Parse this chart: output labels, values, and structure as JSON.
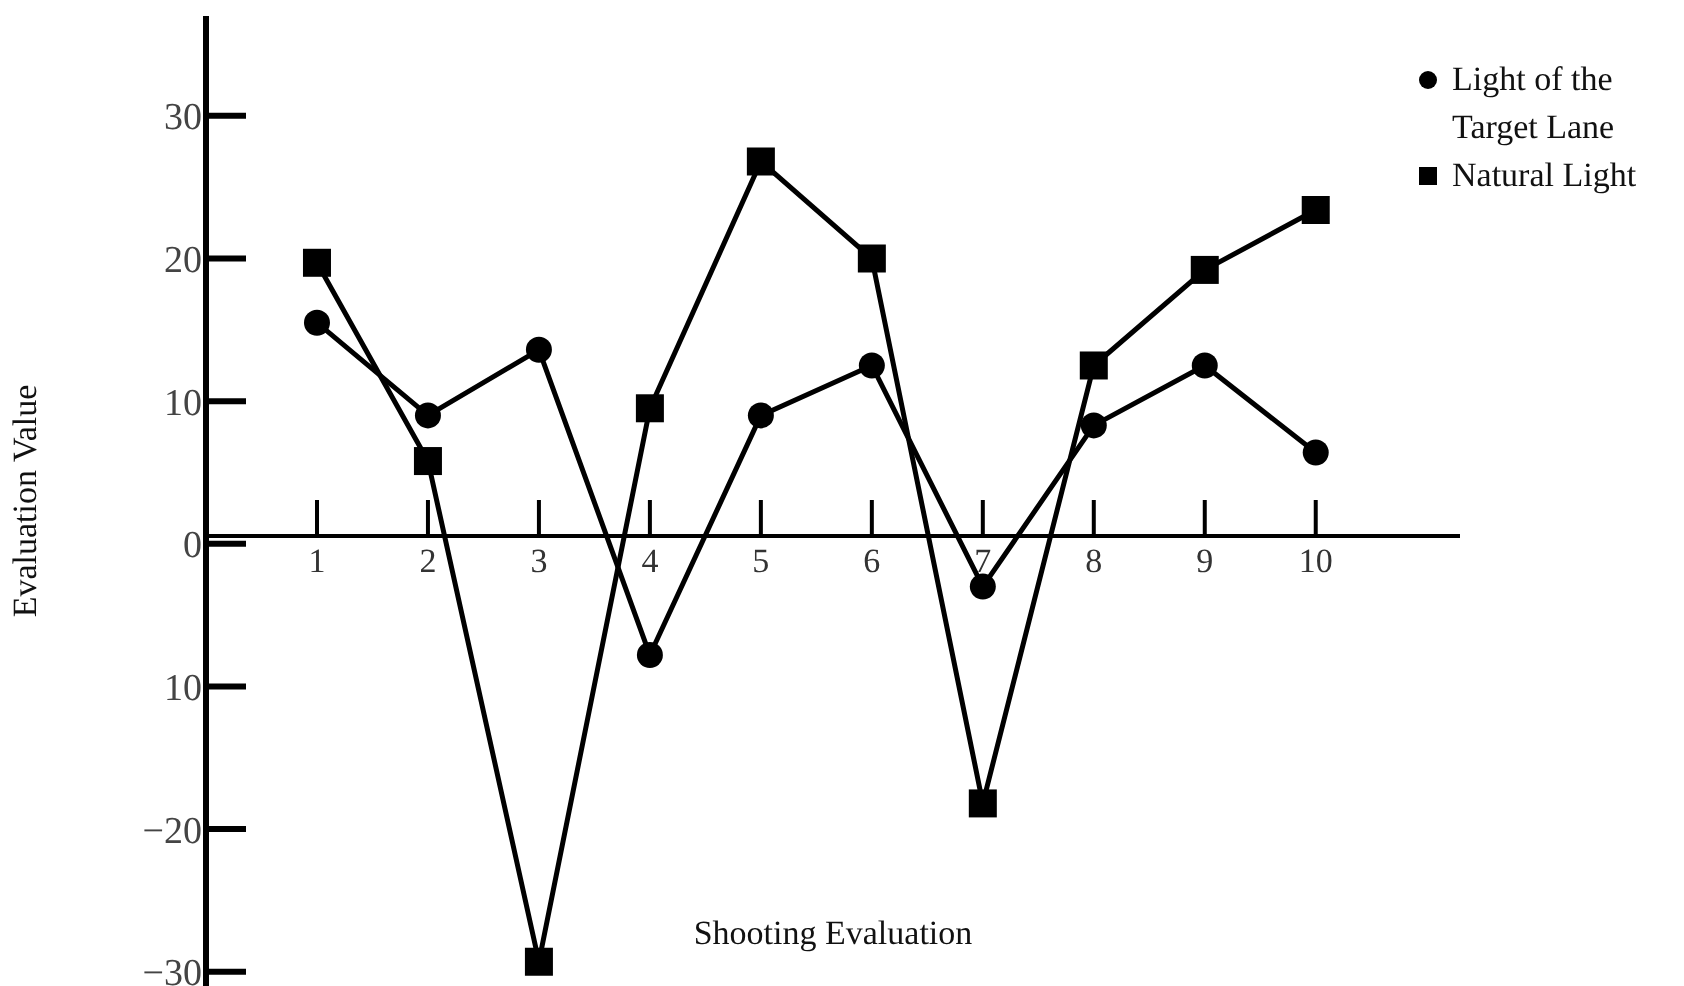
{
  "chart_data": {
    "type": "line",
    "xlabel": "Shooting Evaluation",
    "ylabel": "Evaluation Value",
    "x": [
      1,
      2,
      3,
      4,
      5,
      6,
      7,
      8,
      9,
      10
    ],
    "xlim": [
      0,
      11.3
    ],
    "xticks": [
      1,
      2,
      3,
      4,
      5,
      6,
      7,
      8,
      9,
      10
    ],
    "ylim": [
      -31,
      37
    ],
    "yticks": [
      30,
      20,
      10,
      0,
      {
        "value": -10,
        "label": "10"
      },
      {
        "value": -20,
        "label": "−20"
      },
      {
        "value": -30,
        "label": "−30"
      }
    ],
    "grid": false,
    "legend": "top right",
    "line_style": "solid",
    "series": [
      {
        "name": "Light of the Target Lane",
        "color": "#000000",
        "marker": "circle",
        "values": [
          15.5,
          9,
          13.6,
          -7.8,
          9,
          12.5,
          -3,
          8.3,
          12.5,
          6.4
        ]
      },
      {
        "name": "Natural Light",
        "color": "#000000",
        "marker": "square",
        "values": [
          19.7,
          5.8,
          -29.3,
          9.5,
          26.8,
          20,
          -18.2,
          12.5,
          19.2,
          23.4
        ]
      }
    ]
  }
}
